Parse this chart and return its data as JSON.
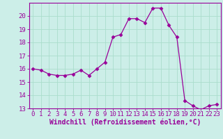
{
  "x": [
    0,
    1,
    2,
    3,
    4,
    5,
    6,
    7,
    8,
    9,
    10,
    11,
    12,
    13,
    14,
    15,
    16,
    17,
    18,
    19,
    20,
    21,
    22,
    23
  ],
  "y": [
    16.0,
    15.9,
    15.6,
    15.5,
    15.5,
    15.6,
    15.9,
    15.5,
    16.0,
    16.5,
    18.4,
    18.6,
    19.8,
    19.8,
    19.5,
    20.6,
    20.6,
    19.3,
    18.4,
    13.6,
    13.2,
    12.9,
    13.2,
    13.3
  ],
  "line_color": "#990099",
  "marker": "D",
  "marker_size": 2.5,
  "bg_color": "#cceee8",
  "grid_color": "#aaddcc",
  "xlabel": "Windchill (Refroidissement éolien,°C)",
  "ylabel": "",
  "xlim_min": -0.5,
  "xlim_max": 23.5,
  "ylim_min": 13,
  "ylim_max": 21,
  "yticks": [
    13,
    14,
    15,
    16,
    17,
    18,
    19,
    20
  ],
  "xticks": [
    0,
    1,
    2,
    3,
    4,
    5,
    6,
    7,
    8,
    9,
    10,
    11,
    12,
    13,
    14,
    15,
    16,
    17,
    18,
    19,
    20,
    21,
    22,
    23
  ],
  "label_color": "#990099",
  "tick_color": "#990099",
  "axis_color": "#990099",
  "font_size": 6.5,
  "xlabel_fontsize": 7.0
}
